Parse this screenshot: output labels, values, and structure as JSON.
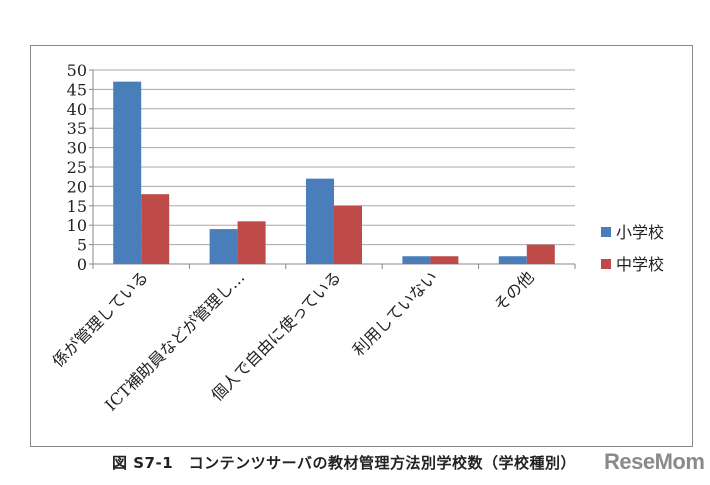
{
  "chart_data": {
    "type": "bar",
    "categories": [
      "係が管理している",
      "ICT補助員などが管理し…",
      "個人で自由に使っている",
      "利用していない",
      "その他"
    ],
    "series": [
      {
        "name": "小学校",
        "values": [
          47,
          9,
          22,
          2,
          2
        ],
        "color": "#4a7ebb"
      },
      {
        "name": "中学校",
        "values": [
          18,
          11,
          15,
          2,
          5
        ],
        "color": "#be4b48"
      }
    ],
    "ylim": [
      0,
      50
    ],
    "yticks": [
      0,
      5,
      10,
      15,
      20,
      25,
      30,
      35,
      40,
      45,
      50
    ],
    "grid": true,
    "legend": "right",
    "title": "図 S7-1　コンテンツサーバの教材管理方法別学校数（学校種別）"
  },
  "logo": "ReseMom"
}
